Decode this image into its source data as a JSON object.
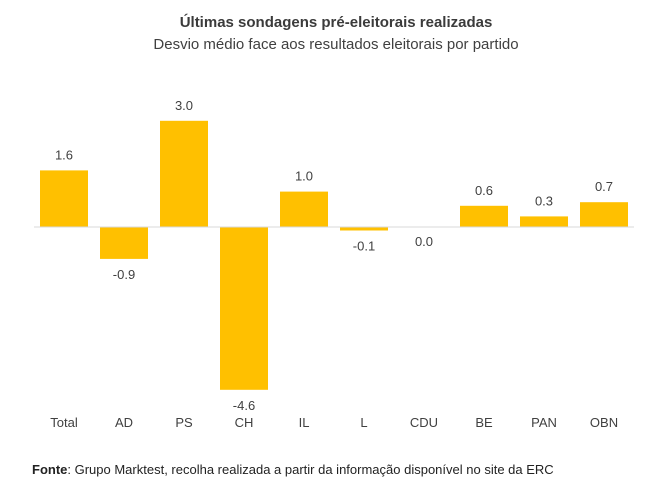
{
  "chart_data": {
    "type": "bar",
    "title": "Últimas sondagens pré-eleitorais realizadas",
    "subtitle": "Desvio médio face aos resultados eleitorais por partido",
    "categories": [
      "Total",
      "AD",
      "PS",
      "CH",
      "IL",
      "L",
      "CDU",
      "BE",
      "PAN",
      "OBN"
    ],
    "values": [
      1.6,
      -0.9,
      3.0,
      -4.6,
      1.0,
      -0.1,
      0.0,
      0.6,
      0.3,
      0.7
    ],
    "data_labels": [
      "1.6",
      "-0.9",
      "3.0",
      "-4.6",
      "1.0",
      "-0.1",
      "0.0",
      "0.6",
      "0.3",
      "0.7"
    ],
    "xlabel": "",
    "ylabel": "",
    "ylim": [
      -4.6,
      3.0
    ],
    "grid": false,
    "legend": "none",
    "bar_color": "#FFC000",
    "axis_color": "#D9D9D9"
  },
  "footer": {
    "label": "Fonte",
    "text": ": Grupo Marktest, recolha realizada a partir da informação disponível no site da ERC"
  }
}
